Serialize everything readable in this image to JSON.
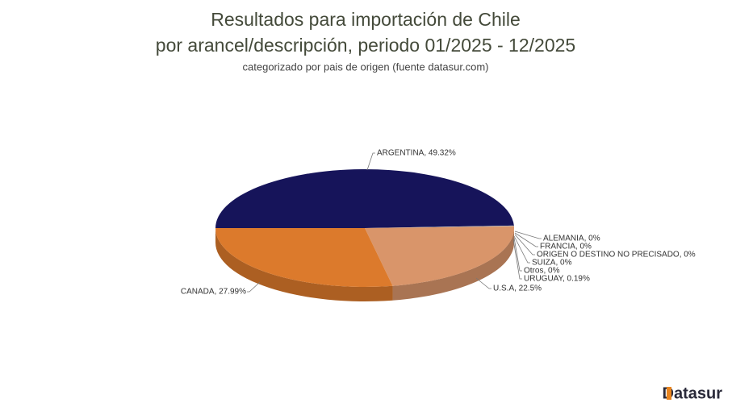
{
  "chart_data": {
    "type": "pie3d",
    "title": [
      "Resultados para importación de Chile",
      "por arancel/descripción, periodo 01/2025 - 12/2025"
    ],
    "subtitle": "categorizado por pais de origen (fuente datasur.com)",
    "values": [
      49.32,
      0,
      0,
      0,
      0,
      0,
      0.19,
      22.5,
      27.99
    ],
    "value_labels": [
      "ARGENTINA, 49.32%",
      "ALEMANIA, 0%",
      "FRANCIA, 0%",
      "ORIGEN O DESTINO NO PRECISADO, 0%",
      "SUIZA, 0%",
      "Otros, 0%",
      "URUGUAY, 0.19%",
      "U.S.A, 22.5%",
      "CANADA, 27.99%"
    ],
    "colors": [
      "#16145a",
      "#4a6fa5",
      "#8aa34a",
      "#7b4fa0",
      "#3f9aa8",
      "#c9463d",
      "#b0b0b0",
      "#d9956a",
      "#dc7a2c"
    ],
    "brand": "Datasur"
  }
}
